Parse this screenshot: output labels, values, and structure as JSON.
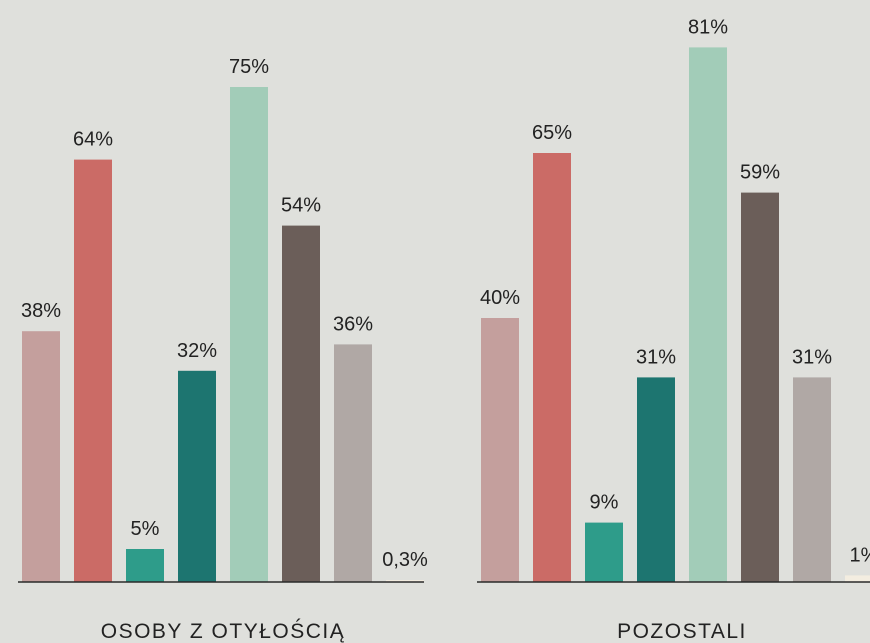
{
  "chart_data": {
    "type": "bar",
    "categories": [
      "OSOBY Z OTYŁOŚCIĄ",
      "POZOSTALI"
    ],
    "series": [
      {
        "color": "#c49f9d",
        "values": [
          38,
          40
        ],
        "value_labels": [
          "38%",
          "40%"
        ]
      },
      {
        "color": "#cb6b66",
        "values": [
          64,
          65
        ],
        "value_labels": [
          "64%",
          "65%"
        ]
      },
      {
        "color": "#2e9c8a",
        "values": [
          5,
          9
        ],
        "value_labels": [
          "5%",
          "9%"
        ]
      },
      {
        "color": "#1d7570",
        "values": [
          32,
          31
        ],
        "value_labels": [
          "32%",
          "31%"
        ]
      },
      {
        "color": "#a2ccb8",
        "values": [
          75,
          81
        ],
        "value_labels": [
          "75%",
          "81%"
        ]
      },
      {
        "color": "#6b5e59",
        "values": [
          54,
          59
        ],
        "value_labels": [
          "54%",
          "59%"
        ]
      },
      {
        "color": "#b0a8a5",
        "values": [
          36,
          31
        ],
        "value_labels": [
          "36%",
          "31%"
        ]
      },
      {
        "color": "#f3ede0",
        "values": [
          0.3,
          1
        ],
        "value_labels": [
          "0,3%",
          "1%"
        ]
      }
    ]
  }
}
